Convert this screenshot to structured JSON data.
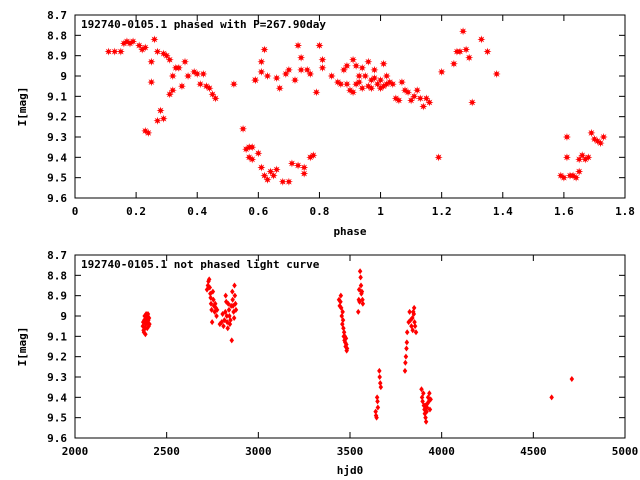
{
  "chart_data": [
    {
      "type": "scatter",
      "title": "192740-0105.1 phased with P=267.90day",
      "xlabel": "phase",
      "ylabel": "I[mag]",
      "xlim": [
        0,
        1.8
      ],
      "ylim": [
        9.6,
        8.7
      ],
      "y_inverted": true,
      "x_ticks": [
        "0",
        "0.2",
        "0.4",
        "0.6",
        "0.8",
        "1",
        "1.2",
        "1.4",
        "1.6",
        "1.8"
      ],
      "y_ticks": [
        "8.7",
        "8.8",
        "8.9",
        "9",
        "9.1",
        "9.2",
        "9.3",
        "9.4",
        "9.5",
        "9.6"
      ],
      "marker": "star",
      "color": "#ff0000",
      "points": [
        [
          0.11,
          8.88
        ],
        [
          0.13,
          8.88
        ],
        [
          0.15,
          8.88
        ],
        [
          0.16,
          8.84
        ],
        [
          0.17,
          8.83
        ],
        [
          0.18,
          8.84
        ],
        [
          0.19,
          8.83
        ],
        [
          0.21,
          8.85
        ],
        [
          0.22,
          8.87
        ],
        [
          0.23,
          8.86
        ],
        [
          0.23,
          9.27
        ],
        [
          0.24,
          9.28
        ],
        [
          0.25,
          8.93
        ],
        [
          0.25,
          9.03
        ],
        [
          0.26,
          8.82
        ],
        [
          0.27,
          8.88
        ],
        [
          0.27,
          9.22
        ],
        [
          0.28,
          9.17
        ],
        [
          0.29,
          9.21
        ],
        [
          0.29,
          8.89
        ],
        [
          0.3,
          8.9
        ],
        [
          0.31,
          8.92
        ],
        [
          0.31,
          9.09
        ],
        [
          0.32,
          9.07
        ],
        [
          0.32,
          9.0
        ],
        [
          0.33,
          8.96
        ],
        [
          0.34,
          8.96
        ],
        [
          0.35,
          9.05
        ],
        [
          0.36,
          8.93
        ],
        [
          0.37,
          9.0
        ],
        [
          0.39,
          8.98
        ],
        [
          0.4,
          8.99
        ],
        [
          0.41,
          9.04
        ],
        [
          0.42,
          8.99
        ],
        [
          0.43,
          9.05
        ],
        [
          0.44,
          9.06
        ],
        [
          0.45,
          9.09
        ],
        [
          0.46,
          9.11
        ],
        [
          0.52,
          9.04
        ],
        [
          0.55,
          9.26
        ],
        [
          0.56,
          9.36
        ],
        [
          0.57,
          9.4
        ],
        [
          0.57,
          9.35
        ],
        [
          0.58,
          9.35
        ],
        [
          0.58,
          9.41
        ],
        [
          0.59,
          9.02
        ],
        [
          0.59,
          9.02
        ],
        [
          0.6,
          9.38
        ],
        [
          0.61,
          9.45
        ],
        [
          0.61,
          8.98
        ],
        [
          0.61,
          8.93
        ],
        [
          0.62,
          9.49
        ],
        [
          0.62,
          8.87
        ],
        [
          0.63,
          9.51
        ],
        [
          0.63,
          9.0
        ],
        [
          0.64,
          9.47
        ],
        [
          0.65,
          9.49
        ],
        [
          0.66,
          9.46
        ],
        [
          0.66,
          9.01
        ],
        [
          0.67,
          9.06
        ],
        [
          0.68,
          9.52
        ],
        [
          0.69,
          8.99
        ],
        [
          0.7,
          9.52
        ],
        [
          0.7,
          8.97
        ],
        [
          0.71,
          9.43
        ],
        [
          0.72,
          9.02
        ],
        [
          0.73,
          9.44
        ],
        [
          0.73,
          8.85
        ],
        [
          0.74,
          8.91
        ],
        [
          0.74,
          8.97
        ],
        [
          0.75,
          9.45
        ],
        [
          0.75,
          9.48
        ],
        [
          0.76,
          8.97
        ],
        [
          0.77,
          9.4
        ],
        [
          0.77,
          8.99
        ],
        [
          0.78,
          9.39
        ],
        [
          0.79,
          9.08
        ],
        [
          0.8,
          8.85
        ],
        [
          0.81,
          8.92
        ],
        [
          0.81,
          8.96
        ],
        [
          0.84,
          9.0
        ],
        [
          0.86,
          9.03
        ],
        [
          0.87,
          9.04
        ],
        [
          0.88,
          8.97
        ],
        [
          0.89,
          8.95
        ],
        [
          0.89,
          9.04
        ],
        [
          0.9,
          9.07
        ],
        [
          0.91,
          9.08
        ],
        [
          0.91,
          8.92
        ],
        [
          0.92,
          9.04
        ],
        [
          0.92,
          8.95
        ],
        [
          0.93,
          9.0
        ],
        [
          0.93,
          9.03
        ],
        [
          0.94,
          9.06
        ],
        [
          0.94,
          8.96
        ],
        [
          0.95,
          9.0
        ],
        [
          0.96,
          8.93
        ],
        [
          0.96,
          9.05
        ],
        [
          0.97,
          9.02
        ],
        [
          0.97,
          9.06
        ],
        [
          0.98,
          9.01
        ],
        [
          0.98,
          8.97
        ],
        [
          0.99,
          9.04
        ],
        [
          1.0,
          9.02
        ],
        [
          1.0,
          9.06
        ],
        [
          1.01,
          8.94
        ],
        [
          1.01,
          9.05
        ],
        [
          1.02,
          9.0
        ],
        [
          1.02,
          9.04
        ],
        [
          1.03,
          9.03
        ],
        [
          1.04,
          9.04
        ],
        [
          1.05,
          9.11
        ],
        [
          1.06,
          9.12
        ],
        [
          1.07,
          9.03
        ],
        [
          1.08,
          9.07
        ],
        [
          1.09,
          9.08
        ],
        [
          1.1,
          9.12
        ],
        [
          1.11,
          9.1
        ],
        [
          1.12,
          9.07
        ],
        [
          1.13,
          9.11
        ],
        [
          1.14,
          9.15
        ],
        [
          1.15,
          9.11
        ],
        [
          1.16,
          9.13
        ],
        [
          1.19,
          9.4
        ],
        [
          1.2,
          8.98
        ],
        [
          1.24,
          8.94
        ],
        [
          1.25,
          8.88
        ],
        [
          1.26,
          8.88
        ],
        [
          1.27,
          8.78
        ],
        [
          1.28,
          8.87
        ],
        [
          1.29,
          8.91
        ],
        [
          1.3,
          9.13
        ],
        [
          1.33,
          8.82
        ],
        [
          1.35,
          8.88
        ],
        [
          1.38,
          8.99
        ],
        [
          1.59,
          9.49
        ],
        [
          1.6,
          9.5
        ],
        [
          1.61,
          9.3
        ],
        [
          1.61,
          9.4
        ],
        [
          1.62,
          9.49
        ],
        [
          1.63,
          9.49
        ],
        [
          1.64,
          9.5
        ],
        [
          1.65,
          9.47
        ],
        [
          1.65,
          9.41
        ],
        [
          1.66,
          9.39
        ],
        [
          1.67,
          9.41
        ],
        [
          1.68,
          9.4
        ],
        [
          1.69,
          9.28
        ],
        [
          1.7,
          9.31
        ],
        [
          1.71,
          9.32
        ],
        [
          1.72,
          9.33
        ],
        [
          1.73,
          9.3
        ]
      ]
    },
    {
      "type": "scatter",
      "title": "192740-0105.1 not phased light curve",
      "xlabel": "hjd0",
      "ylabel": "I[mag]",
      "xlim": [
        2000,
        5000
      ],
      "ylim": [
        9.6,
        8.7
      ],
      "y_inverted": true,
      "x_ticks": [
        "2000",
        "2500",
        "3000",
        "3500",
        "4000",
        "4500",
        "5000"
      ],
      "y_ticks": [
        "8.7",
        "8.8",
        "8.9",
        "9",
        "9.1",
        "9.2",
        "9.3",
        "9.4",
        "9.5",
        "9.6"
      ],
      "marker": "diamond",
      "color": "#ff0000",
      "points": [
        [
          2370,
          9.05
        ],
        [
          2372,
          9.03
        ],
        [
          2374,
          9.07
        ],
        [
          2376,
          9.08
        ],
        [
          2378,
          9.02
        ],
        [
          2380,
          9.0
        ],
        [
          2382,
          9.06
        ],
        [
          2384,
          9.09
        ],
        [
          2386,
          9.04
        ],
        [
          2388,
          8.99
        ],
        [
          2390,
          9.01
        ],
        [
          2392,
          9.03
        ],
        [
          2394,
          9.06
        ],
        [
          2396,
          9.0
        ],
        [
          2398,
          8.99
        ],
        [
          2400,
          9.02
        ],
        [
          2402,
          9.05
        ],
        [
          2404,
          9.01
        ],
        [
          2406,
          9.04
        ],
        [
          2720,
          8.87
        ],
        [
          2725,
          8.85
        ],
        [
          2728,
          8.83
        ],
        [
          2732,
          8.82
        ],
        [
          2735,
          8.86
        ],
        [
          2738,
          8.89
        ],
        [
          2740,
          8.91
        ],
        [
          2742,
          8.94
        ],
        [
          2745,
          8.97
        ],
        [
          2748,
          9.03
        ],
        [
          2752,
          8.88
        ],
        [
          2755,
          8.92
        ],
        [
          2758,
          8.95
        ],
        [
          2762,
          8.98
        ],
        [
          2765,
          8.94
        ],
        [
          2768,
          8.96
        ],
        [
          2772,
          9.0
        ],
        [
          2775,
          8.97
        ],
        [
          2790,
          9.04
        ],
        [
          2800,
          9.03
        ],
        [
          2805,
          8.99
        ],
        [
          2810,
          9.05
        ],
        [
          2815,
          9.02
        ],
        [
          2820,
          8.98
        ],
        [
          2822,
          8.9
        ],
        [
          2825,
          8.93
        ],
        [
          2828,
          9.0
        ],
        [
          2830,
          9.03
        ],
        [
          2833,
          9.06
        ],
        [
          2836,
          8.94
        ],
        [
          2840,
          8.97
        ],
        [
          2842,
          9.0
        ],
        [
          2845,
          9.04
        ],
        [
          2848,
          9.02
        ],
        [
          2852,
          8.95
        ],
        [
          2855,
          9.12
        ],
        [
          2858,
          8.88
        ],
        [
          2860,
          8.92
        ],
        [
          2862,
          8.95
        ],
        [
          2865,
          8.98
        ],
        [
          2868,
          9.01
        ],
        [
          2870,
          8.85
        ],
        [
          2872,
          8.9
        ],
        [
          2875,
          8.94
        ],
        [
          2878,
          8.97
        ],
        [
          3440,
          8.92
        ],
        [
          3444,
          8.95
        ],
        [
          3448,
          8.93
        ],
        [
          3450,
          8.9
        ],
        [
          3452,
          8.96
        ],
        [
          3455,
          9.0
        ],
        [
          3458,
          9.04
        ],
        [
          3460,
          8.98
        ],
        [
          3462,
          9.02
        ],
        [
          3464,
          9.06
        ],
        [
          3466,
          9.1
        ],
        [
          3468,
          9.08
        ],
        [
          3470,
          9.12
        ],
        [
          3472,
          9.1
        ],
        [
          3474,
          9.13
        ],
        [
          3476,
          9.15
        ],
        [
          3478,
          9.11
        ],
        [
          3480,
          9.14
        ],
        [
          3482,
          9.17
        ],
        [
          3484,
          9.16
        ],
        [
          3545,
          8.98
        ],
        [
          3548,
          8.92
        ],
        [
          3550,
          8.87
        ],
        [
          3552,
          8.93
        ],
        [
          3555,
          8.78
        ],
        [
          3558,
          8.81
        ],
        [
          3560,
          8.85
        ],
        [
          3562,
          8.89
        ],
        [
          3565,
          8.88
        ],
        [
          3568,
          8.92
        ],
        [
          3570,
          8.94
        ],
        [
          3640,
          9.47
        ],
        [
          3642,
          9.49
        ],
        [
          3645,
          9.5
        ],
        [
          3648,
          9.4
        ],
        [
          3650,
          9.42
        ],
        [
          3652,
          9.45
        ],
        [
          3660,
          9.27
        ],
        [
          3662,
          9.3
        ],
        [
          3665,
          9.33
        ],
        [
          3668,
          9.35
        ],
        [
          3800,
          9.27
        ],
        [
          3802,
          9.23
        ],
        [
          3805,
          9.2
        ],
        [
          3808,
          9.16
        ],
        [
          3810,
          9.13
        ],
        [
          3812,
          9.08
        ],
        [
          3820,
          9.03
        ],
        [
          3825,
          8.98
        ],
        [
          3830,
          9.02
        ],
        [
          3835,
          9.05
        ],
        [
          3840,
          9.01
        ],
        [
          3842,
          9.07
        ],
        [
          3845,
          8.98
        ],
        [
          3848,
          8.99
        ],
        [
          3850,
          8.96
        ],
        [
          3852,
          9.03
        ],
        [
          3855,
          9.05
        ],
        [
          3860,
          9.08
        ],
        [
          3890,
          9.36
        ],
        [
          3893,
          9.4
        ],
        [
          3896,
          9.42
        ],
        [
          3900,
          9.38
        ],
        [
          3903,
          9.44
        ],
        [
          3906,
          9.46
        ],
        [
          3908,
          9.48
        ],
        [
          3910,
          9.44
        ],
        [
          3912,
          9.5
        ],
        [
          3915,
          9.52
        ],
        [
          3918,
          9.47
        ],
        [
          3920,
          9.45
        ],
        [
          3923,
          9.43
        ],
        [
          3926,
          9.4
        ],
        [
          3930,
          9.42
        ],
        [
          3933,
          9.38
        ],
        [
          3936,
          9.46
        ],
        [
          3940,
          9.41
        ],
        [
          4600,
          9.4
        ],
        [
          4710,
          9.31
        ]
      ]
    }
  ]
}
